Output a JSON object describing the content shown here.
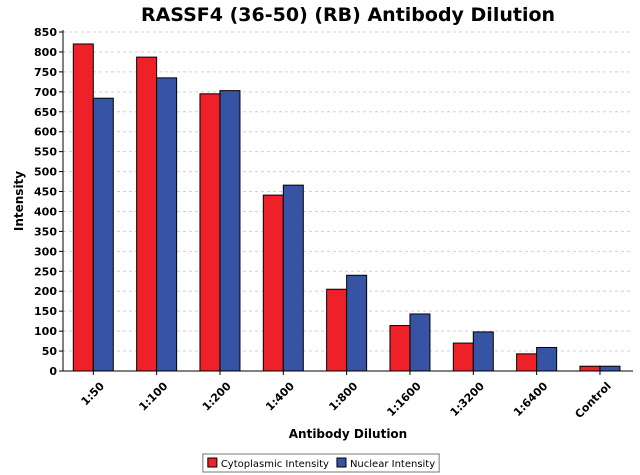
{
  "chart_data": {
    "type": "bar",
    "title": "RASSF4 (36-50) (RB) Antibody Dilution",
    "xlabel": "Antibody Dilution",
    "ylabel": "Intensity",
    "categories": [
      "1:50",
      "1:100",
      "1:200",
      "1:400",
      "1:800",
      "1:1600",
      "1:3200",
      "1:6400",
      "Control"
    ],
    "series": [
      {
        "name": "Cytoplasmic Intensity",
        "color": "#ee2128",
        "values": [
          820,
          787,
          695,
          441,
          205,
          114,
          70,
          43,
          12
        ]
      },
      {
        "name": "Nuclear Intensity",
        "color": "#3753a4",
        "values": [
          684,
          735,
          703,
          466,
          240,
          143,
          98,
          59,
          12
        ]
      }
    ],
    "ylim": [
      0,
      850
    ],
    "yticks": [
      0,
      50,
      100,
      150,
      200,
      250,
      300,
      350,
      400,
      450,
      500,
      550,
      600,
      650,
      700,
      750,
      800,
      850
    ],
    "grid": "horizontal dashed",
    "legend_position": "bottom-center"
  }
}
